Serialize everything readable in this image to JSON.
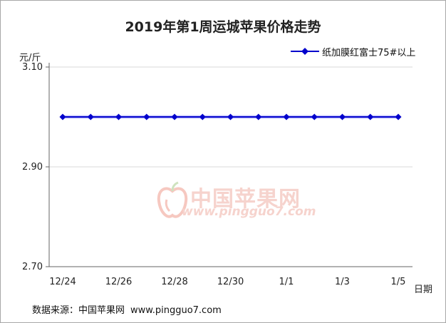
{
  "chart_data": {
    "type": "line",
    "title": "2019年第1周运城苹果价格走势",
    "ylabel": "元/斤",
    "xlabel": "日期",
    "ylim": [
      2.7,
      3.1
    ],
    "yticks": [
      "3.10",
      "2.90",
      "2.70"
    ],
    "x": [
      "12/24",
      "12/25",
      "12/26",
      "12/27",
      "12/28",
      "12/29",
      "12/30",
      "12/31",
      "1/1",
      "1/2",
      "1/3",
      "1/4",
      "1/5"
    ],
    "xtick_labels": [
      "12/24",
      "",
      "12/26",
      "",
      "12/28",
      "",
      "12/30",
      "",
      "1/1",
      "",
      "1/3",
      "",
      "1/5"
    ],
    "series": [
      {
        "name": "纸加膜红富士75#以上",
        "color": "#0000cc",
        "values": [
          3.0,
          3.0,
          3.0,
          3.0,
          3.0,
          3.0,
          3.0,
          3.0,
          3.0,
          3.0,
          3.0,
          3.0,
          3.0
        ]
      }
    ],
    "grid": true,
    "legend": "top-right"
  },
  "source": {
    "label": "数据来源：中国苹果网",
    "url": "www.pingguo7.com"
  },
  "watermark": {
    "name": "中国苹果网",
    "url": "www.pingguo7.com"
  }
}
